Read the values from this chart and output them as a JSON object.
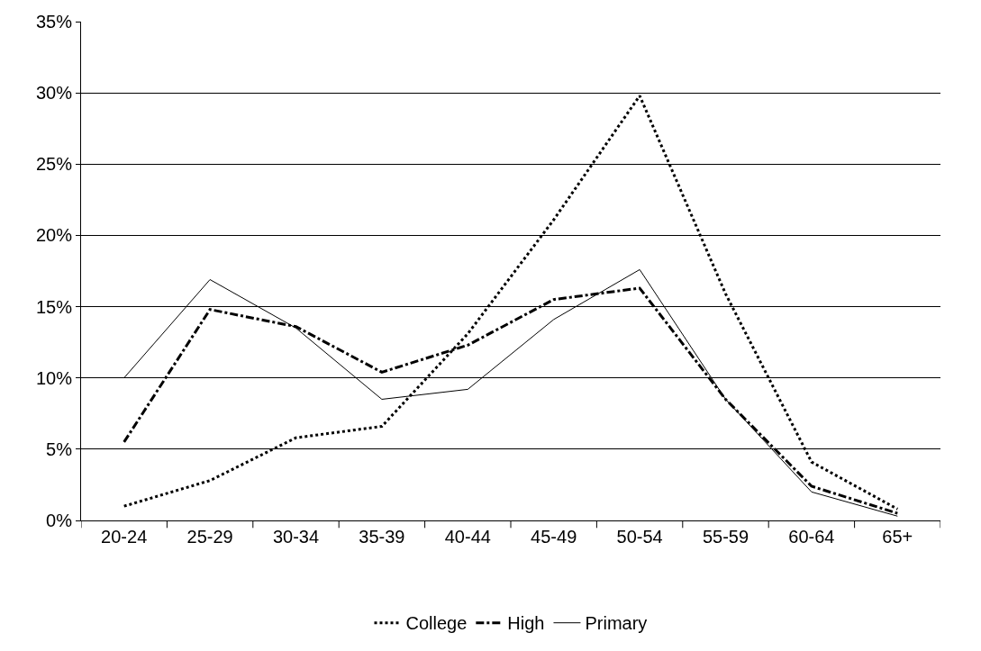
{
  "chart_data": {
    "type": "line",
    "categories": [
      "20-24",
      "25-29",
      "30-34",
      "35-39",
      "40-44",
      "45-49",
      "50-54",
      "55-59",
      "60-64",
      "65+"
    ],
    "series": [
      {
        "name": "College",
        "color": "#000000",
        "line_style": "dotted",
        "values": [
          1.0,
          2.8,
          5.8,
          6.6,
          13.1,
          21.1,
          29.8,
          15.9,
          4.1,
          0.8
        ]
      },
      {
        "name": "High",
        "color": "#000000",
        "line_style": "dashdot",
        "values": [
          5.5,
          14.8,
          13.6,
          10.4,
          12.3,
          15.5,
          16.3,
          8.5,
          2.4,
          0.5
        ]
      },
      {
        "name": "Primary",
        "color": "#000000",
        "line_style": "solid",
        "values": [
          10.0,
          16.9,
          13.5,
          8.5,
          9.2,
          14.1,
          17.6,
          8.5,
          2.0,
          0.3
        ]
      }
    ],
    "ylim": [
      0,
      35
    ],
    "yticks": [
      {
        "value": 0,
        "label": "0%"
      },
      {
        "value": 5,
        "label": "5%"
      },
      {
        "value": 10,
        "label": "10%"
      },
      {
        "value": 15,
        "label": "15%"
      },
      {
        "value": 20,
        "label": "20%"
      },
      {
        "value": 25,
        "label": "25%"
      },
      {
        "value": 30,
        "label": "30%"
      },
      {
        "value": 35,
        "label": "35%"
      }
    ],
    "grid": "y",
    "legend": "bottom",
    "marker": "none"
  }
}
